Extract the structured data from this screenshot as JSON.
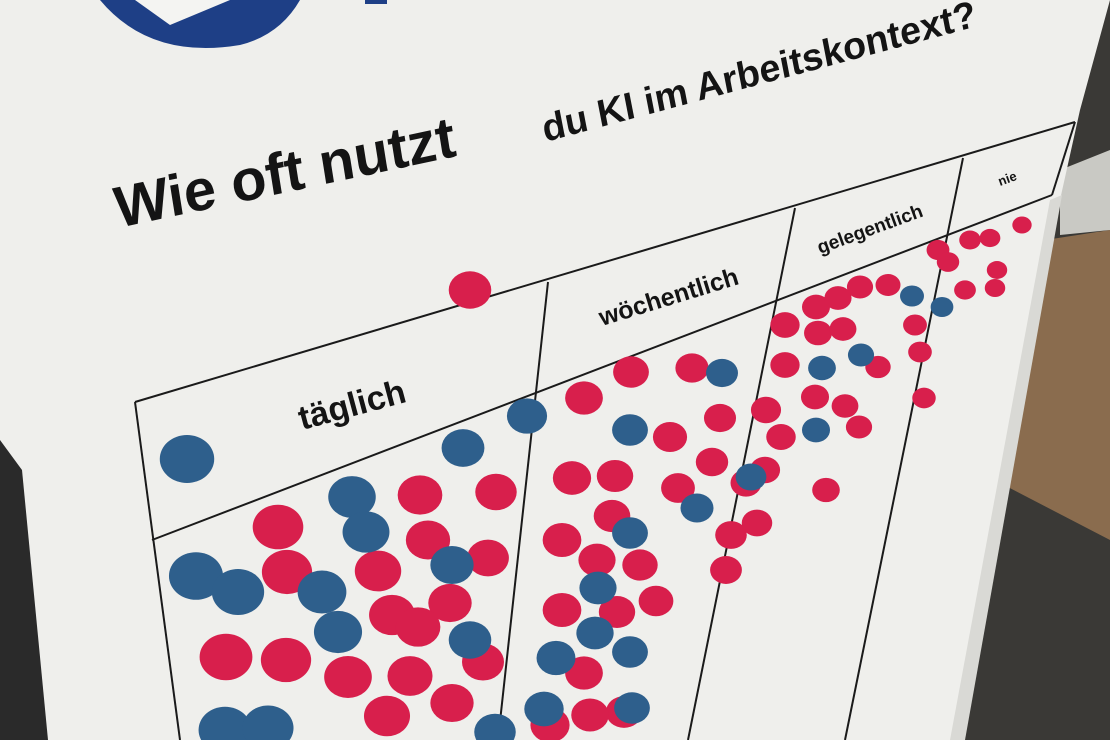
{
  "poster": {
    "question_part1": "Wie oft nutzt",
    "question_part2": "du KI im Arbeitskontext?",
    "columns": [
      {
        "label": "täglich"
      },
      {
        "label": "wöchentlich"
      },
      {
        "label": "gelegentlich"
      },
      {
        "label": "nie"
      }
    ],
    "logo": "partial circular logo (blue/white), mostly cropped"
  },
  "colors": {
    "dot_red": "#d81f4c",
    "dot_blue": "#2e5f8c",
    "board": "#f1f1ee",
    "logo_blue": "#1e3f86",
    "floor": "#8a6c4e"
  }
}
